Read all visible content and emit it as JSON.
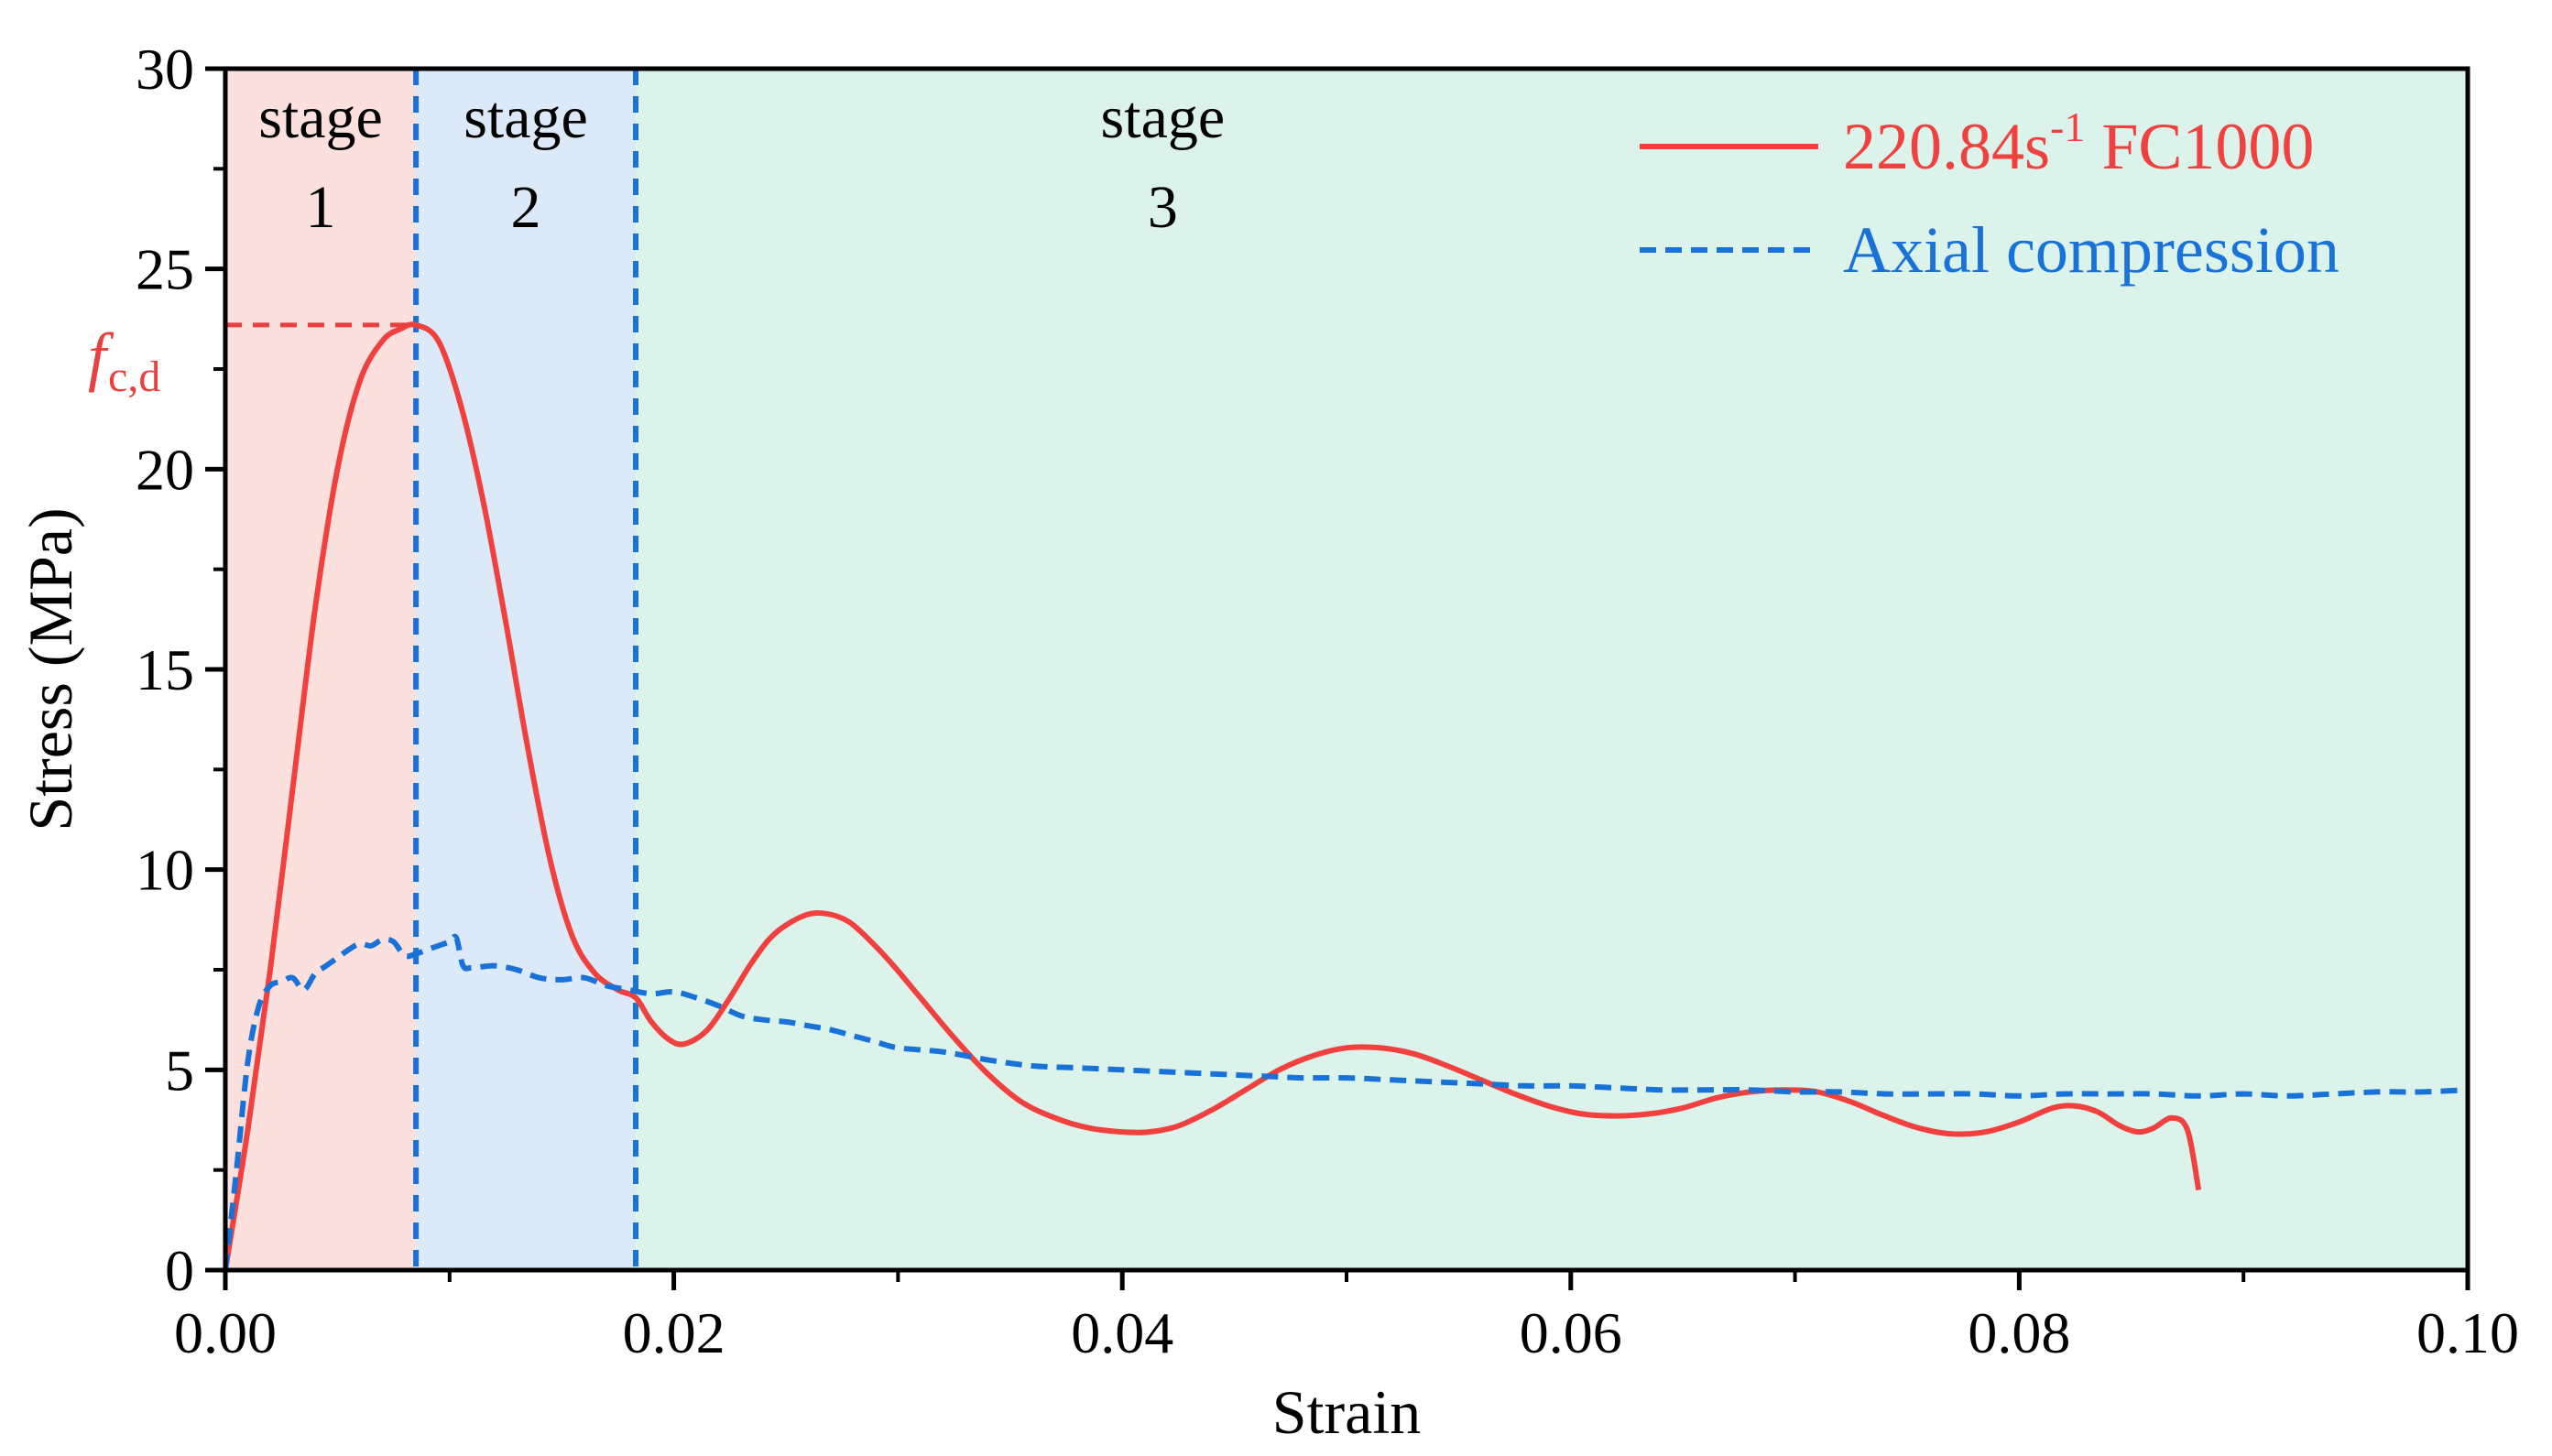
{
  "chart_data": {
    "type": "line",
    "title": "",
    "xlabel": "Strain",
    "ylabel": "Stress (MPa)",
    "xlim": [
      0,
      0.1
    ],
    "ylim": [
      0,
      30
    ],
    "xticks": [
      0.0,
      0.02,
      0.04,
      0.06,
      0.08,
      0.1
    ],
    "xtick_labels": [
      "0.00",
      "0.02",
      "0.04",
      "0.06",
      "0.08",
      "0.10"
    ],
    "yticks": [
      0,
      5,
      10,
      15,
      20,
      25,
      30
    ],
    "ytick_labels": [
      "0",
      "5",
      "10",
      "15",
      "20",
      "25",
      "30"
    ],
    "grid": false,
    "legend_position": "top-right",
    "stages": [
      {
        "word": "stage",
        "number": "1",
        "x_start": 0.0,
        "x_end": 0.0085,
        "color": "#fbe0dd"
      },
      {
        "word": "stage",
        "number": "2",
        "x_start": 0.0085,
        "x_end": 0.0183,
        "color": "#dbe9f8"
      },
      {
        "word": "stage",
        "number": "3",
        "x_start": 0.0183,
        "x_end": 0.1,
        "color": "#dbf3ea"
      }
    ],
    "peak_annotation": {
      "symbol": "f",
      "subscript": "c,d",
      "x": 0.0085,
      "y": 23.6,
      "color": "#e8413f"
    },
    "series": [
      {
        "name": "220.84s",
        "superscript": "-1",
        "suffix": " FC1000",
        "color": "#f0413e",
        "style": "solid",
        "x": [
          0,
          0.001,
          0.002,
          0.003,
          0.004,
          0.005,
          0.006,
          0.007,
          0.0078,
          0.0085,
          0.0095,
          0.0105,
          0.0115,
          0.0125,
          0.0135,
          0.0145,
          0.0155,
          0.0165,
          0.0175,
          0.0183,
          0.019,
          0.0198,
          0.0205,
          0.0215,
          0.0225,
          0.0235,
          0.0245,
          0.0258,
          0.0268,
          0.0278,
          0.0288,
          0.0298,
          0.031,
          0.0325,
          0.034,
          0.0355,
          0.037,
          0.0385,
          0.04,
          0.0412,
          0.0425,
          0.044,
          0.0455,
          0.047,
          0.0485,
          0.05,
          0.0515,
          0.053,
          0.0545,
          0.056,
          0.0575,
          0.059,
          0.0605,
          0.062,
          0.0635,
          0.065,
          0.0665,
          0.068,
          0.0695,
          0.071,
          0.0725,
          0.074,
          0.0755,
          0.077,
          0.0785,
          0.08,
          0.0815,
          0.0825,
          0.0835,
          0.0845,
          0.0853,
          0.086,
          0.0868,
          0.0875,
          0.088
        ],
        "y": [
          0,
          3.5,
          7.5,
          12,
          16.5,
          20,
          22.2,
          23.2,
          23.5,
          23.6,
          23.2,
          21.6,
          19.2,
          16.2,
          13.0,
          10.2,
          8.3,
          7.4,
          7.0,
          6.8,
          6.2,
          5.75,
          5.65,
          6.0,
          6.8,
          7.7,
          8.4,
          8.85,
          8.9,
          8.7,
          8.2,
          7.6,
          6.8,
          5.8,
          4.9,
          4.2,
          3.8,
          3.55,
          3.45,
          3.45,
          3.6,
          4.0,
          4.5,
          5.0,
          5.35,
          5.55,
          5.55,
          5.4,
          5.1,
          4.75,
          4.4,
          4.1,
          3.9,
          3.85,
          3.9,
          4.05,
          4.3,
          4.45,
          4.5,
          4.45,
          4.2,
          3.85,
          3.55,
          3.4,
          3.45,
          3.7,
          4.05,
          4.1,
          3.95,
          3.6,
          3.45,
          3.55,
          3.8,
          3.5,
          2.0
        ]
      },
      {
        "name": "Axial compression",
        "superscript": "",
        "suffix": "",
        "color": "#1872d8",
        "style": "dashed",
        "x": [
          0,
          0.0005,
          0.001,
          0.0015,
          0.002,
          0.0025,
          0.003,
          0.0035,
          0.004,
          0.0045,
          0.005,
          0.0055,
          0.006,
          0.0065,
          0.007,
          0.0075,
          0.008,
          0.0085,
          0.009,
          0.0095,
          0.01,
          0.0103,
          0.0106,
          0.011,
          0.012,
          0.013,
          0.014,
          0.015,
          0.016,
          0.017,
          0.018,
          0.019,
          0.02,
          0.021,
          0.022,
          0.023,
          0.024,
          0.025,
          0.026,
          0.027,
          0.028,
          0.029,
          0.03,
          0.032,
          0.034,
          0.036,
          0.038,
          0.04,
          0.042,
          0.044,
          0.046,
          0.048,
          0.05,
          0.052,
          0.054,
          0.056,
          0.058,
          0.06,
          0.062,
          0.064,
          0.066,
          0.068,
          0.07,
          0.072,
          0.074,
          0.076,
          0.078,
          0.08,
          0.082,
          0.084,
          0.086,
          0.088,
          0.09,
          0.092,
          0.094,
          0.096,
          0.098,
          0.1
        ],
        "y": [
          0,
          2.5,
          5.2,
          6.6,
          7.1,
          7.2,
          7.3,
          7.0,
          7.4,
          7.6,
          7.8,
          8.0,
          8.15,
          8.1,
          8.25,
          8.2,
          7.85,
          7.9,
          8.0,
          8.1,
          8.2,
          8.3,
          7.6,
          7.55,
          7.6,
          7.5,
          7.3,
          7.25,
          7.3,
          7.1,
          7.0,
          6.9,
          6.95,
          6.8,
          6.6,
          6.35,
          6.25,
          6.2,
          6.1,
          6.0,
          5.85,
          5.7,
          5.55,
          5.45,
          5.25,
          5.1,
          5.05,
          5.0,
          4.95,
          4.9,
          4.85,
          4.8,
          4.8,
          4.75,
          4.7,
          4.65,
          4.6,
          4.6,
          4.55,
          4.5,
          4.5,
          4.5,
          4.45,
          4.45,
          4.4,
          4.4,
          4.4,
          4.35,
          4.4,
          4.4,
          4.4,
          4.35,
          4.4,
          4.35,
          4.4,
          4.45,
          4.45,
          4.5
        ]
      }
    ]
  }
}
